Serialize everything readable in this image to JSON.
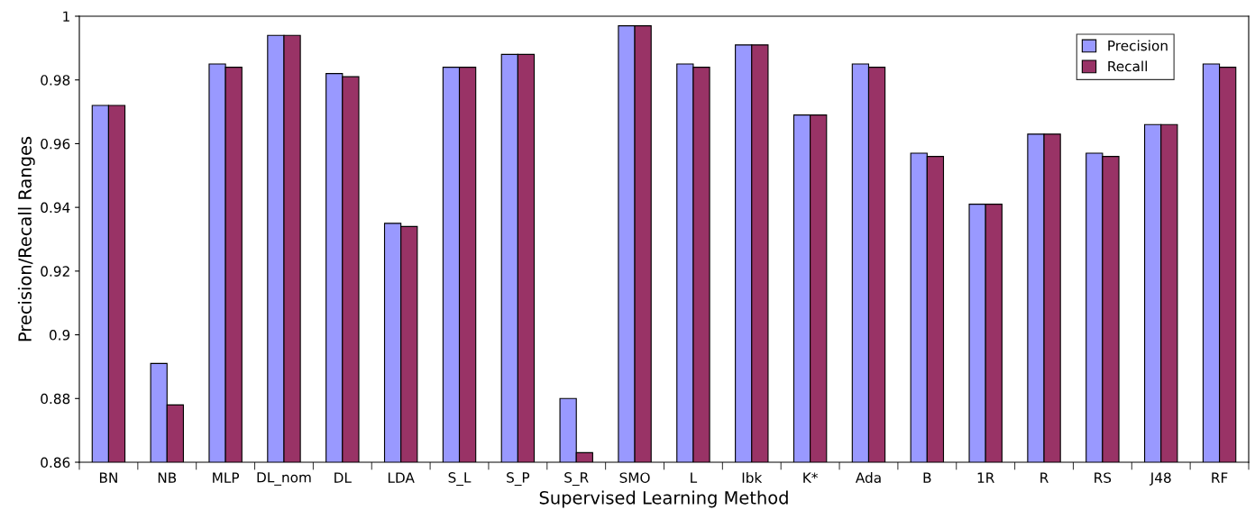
{
  "chart_data": {
    "type": "bar",
    "xlabel": "Supervised Learning Method",
    "ylabel": "Precision/Recall Ranges",
    "categories": [
      "BN",
      "NB",
      "MLP",
      "DL_nom",
      "DL",
      "LDA",
      "S_L",
      "S_P",
      "S_R",
      "SMO",
      "L",
      "Ibk",
      "K*",
      "Ada",
      "B",
      "1R",
      "R",
      "RS",
      "J48",
      "RF"
    ],
    "series": [
      {
        "name": "Precision",
        "color": "#9999ff",
        "values": [
          0.972,
          0.891,
          0.985,
          0.994,
          0.982,
          0.935,
          0.984,
          0.988,
          0.88,
          0.997,
          0.985,
          0.991,
          0.969,
          0.985,
          0.957,
          0.941,
          0.963,
          0.957,
          0.966,
          0.985
        ]
      },
      {
        "name": "Recall",
        "color": "#993366",
        "values": [
          0.972,
          0.878,
          0.984,
          0.994,
          0.981,
          0.934,
          0.984,
          0.988,
          0.863,
          0.997,
          0.984,
          0.991,
          0.969,
          0.984,
          0.956,
          0.941,
          0.963,
          0.956,
          0.966,
          0.984
        ]
      }
    ],
    "ylim": [
      0.86,
      1
    ],
    "yticks": [
      0.86,
      0.88,
      0.9,
      0.92,
      0.94,
      0.96,
      0.98,
      {
        "value": 1,
        "label": "1"
      }
    ],
    "grid": false,
    "legend": "top right"
  }
}
